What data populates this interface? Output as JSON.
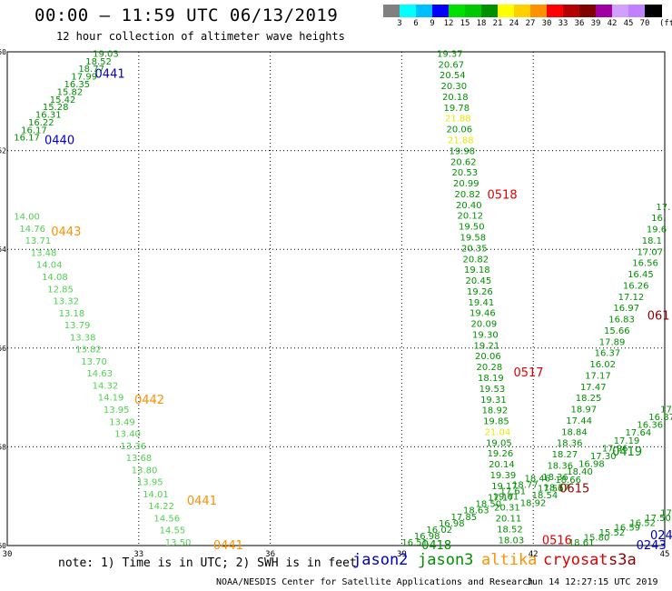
{
  "title": "00:00 – 11:59 UTC 06/13/2019",
  "subtitle": "12 hour collection of altimeter wave heights",
  "colorbar": {
    "colors": [
      "#808080",
      "#00ffff",
      "#00bfff",
      "#0000ff",
      "#00e000",
      "#00c800",
      "#009000",
      "#ffff00",
      "#ffd000",
      "#ff9000",
      "#ff0000",
      "#b40000",
      "#800000",
      "#a000a0",
      "#d0a0ff",
      "#c080ff",
      "#000000"
    ],
    "labels": [
      "3",
      "6",
      "9",
      "12",
      "15",
      "18",
      "21",
      "24",
      "27",
      "30",
      "33",
      "36",
      "39",
      "42",
      "45",
      "70"
    ],
    "unit": "(ft)"
  },
  "axes": {
    "x": [
      30,
      33,
      36,
      39,
      42,
      45
    ],
    "y": [
      -50,
      -52,
      -54,
      -56,
      -58,
      -60
    ]
  },
  "note": "note: 1) Time is in UTC; 2) SWH is in feet",
  "legend": [
    {
      "name": "jason2",
      "color": "#0000c8"
    },
    {
      "name": "jason3",
      "color": "#009000"
    },
    {
      "name": "altika",
      "color": "#ff9000"
    },
    {
      "name": "cryosat",
      "color": "#e00000"
    },
    {
      "name": "s3a",
      "color": "#900000"
    }
  ],
  "credit": "NOAA/NESDIS Center for Satellite Applications and Research",
  "timestamp": "Jun 14 12:27:15 UTC 2019",
  "pass_labels": [
    {
      "text": "0441",
      "lon": 32.0,
      "lat": -50.45,
      "color": "#0000c8"
    },
    {
      "text": "0440",
      "lon": 30.85,
      "lat": -51.8,
      "color": "#0000c8"
    },
    {
      "text": "0443",
      "lon": 31.0,
      "lat": -53.65,
      "color": "#ff9000"
    },
    {
      "text": "0442",
      "lon": 32.9,
      "lat": -57.05,
      "color": "#ff9000"
    },
    {
      "text": "0441",
      "lon": 34.1,
      "lat": -59.1,
      "color": "#ff9000"
    },
    {
      "text": "0441",
      "lon": 34.7,
      "lat": -60.0,
      "color": "#ff9000"
    },
    {
      "text": "0518",
      "lon": 40.95,
      "lat": -52.9,
      "color": "#e00000"
    },
    {
      "text": "0517",
      "lon": 41.55,
      "lat": -56.5,
      "color": "#e00000"
    },
    {
      "text": "0516",
      "lon": 42.2,
      "lat": -59.9,
      "color": "#e00000"
    },
    {
      "text": "0615",
      "lon": 42.6,
      "lat": -58.85,
      "color": "#900000"
    },
    {
      "text": "061",
      "lon": 44.6,
      "lat": -55.35,
      "color": "#900000"
    },
    {
      "text": "0419",
      "lon": 43.8,
      "lat": -58.1,
      "color": "#009000"
    },
    {
      "text": "0418",
      "lon": 39.45,
      "lat": -60.0,
      "color": "#009000"
    },
    {
      "text": "0243",
      "lon": 44.35,
      "lat": -60.0,
      "color": "#0000c8"
    },
    {
      "text": "024",
      "lon": 44.75,
      "lat": -59.8,
      "color": "#0000c8"
    }
  ],
  "tracks": [
    {
      "color": "#009000",
      "start": [
        31.95,
        -50.1
      ],
      "end": [
        30.15,
        -51.8
      ],
      "values": [
        "19.03",
        "18.52",
        "18.77",
        "17.99",
        "16.35",
        "15.82",
        "15.42",
        "15.28",
        "16.31",
        "16.22",
        "16.17",
        "16.17"
      ]
    },
    {
      "color": "#50d050",
      "start": [
        30.15,
        -53.4
      ],
      "end": [
        33.6,
        -60.0
      ],
      "values": [
        "14.00",
        "14.76",
        "13.71",
        "13.48",
        "14.04",
        "14.08",
        "12.85",
        "13.32",
        "13.18",
        "13.79",
        "13.38",
        "13.82",
        "13.70",
        "14.63",
        "14.32",
        "14.19",
        "13.95",
        "13.49",
        "13.40",
        "13.36",
        "13.68",
        "13.80",
        "13.95",
        "14.01",
        "14.22",
        "14.56",
        "14.55",
        "13.50"
      ]
    },
    {
      "color": "#009000",
      "start": [
        39.8,
        -50.1
      ],
      "end": [
        41.2,
        -59.95
      ],
      "values": [
        "19.37",
        "20.67",
        "20.54",
        "20.30",
        "20.18",
        "19.78",
        "21.88",
        "20.06",
        "21.88",
        "19.98",
        "20.62",
        "20.53",
        "20.99",
        "20.82",
        "20.40",
        "20.12",
        "19.50",
        "19.58",
        "20.35",
        "20.82",
        "19.18",
        "20.45",
        "19.26",
        "19.41",
        "19.46",
        "20.09",
        "19.30",
        "19.21",
        "20.06",
        "20.28",
        "18.19",
        "19.53",
        "19.31",
        "18.92",
        "19.85",
        "21.04",
        "19.05",
        "19.26",
        "20.14",
        "19.39",
        "19.17",
        "19.61",
        "20.31",
        "20.11",
        "18.52",
        "18.03"
      ]
    },
    {
      "color": "#009000",
      "start": [
        44.8,
        -53.2
      ],
      "end": [
        42.1,
        -58.9
      ],
      "values": [
        "17.",
        "16.",
        "19.6",
        "18.1",
        "17.07",
        "16.56",
        "16.45",
        "16.26",
        "17.12",
        "16.97",
        "16.83",
        "15.66",
        "17.89",
        "16.37",
        "16.02",
        "17.17",
        "17.47",
        "18.25",
        "18.97",
        "17.44",
        "18.84",
        "18.36",
        "18.27",
        "18.36",
        "18.36",
        "17.56"
      ]
    },
    {
      "color": "#009000",
      "start": [
        44.9,
        -57.3
      ],
      "end": [
        41.7,
        -59.2
      ],
      "values": [
        "17.",
        "16.87",
        "16.36",
        "17.64",
        "17.19",
        "17.96",
        "17.30",
        "16.98",
        "18.40",
        "18.66",
        "18.57",
        "18.54",
        "18.92"
      ]
    },
    {
      "color": "#009000",
      "start": [
        39.0,
        -60.0
      ],
      "end": [
        41.8,
        -58.7
      ],
      "values": [
        "16.51",
        "16.98",
        "16.02",
        "16.98",
        "17.85",
        "18.63",
        "18.50",
        "17.17",
        "17.61",
        "18.77",
        "18.46"
      ]
    },
    {
      "color": "#009000",
      "start": [
        42.8,
        -60.0
      ],
      "end": [
        44.9,
        -59.4
      ],
      "values": [
        "18.61",
        "15.80",
        "15.52",
        "16.59",
        "16.52",
        "17.50",
        "17."
      ]
    }
  ]
}
